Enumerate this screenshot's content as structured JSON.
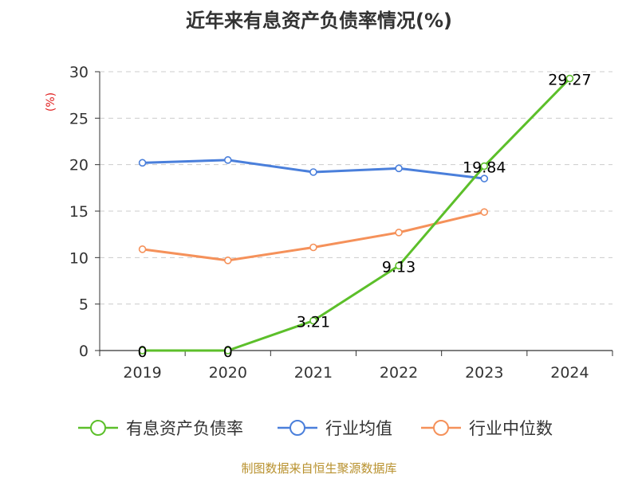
{
  "chart_data": {
    "type": "line",
    "title": "近年来有息资产负债率情况(%)",
    "ylabel": "(%)",
    "xlabel": "",
    "categories": [
      "2019",
      "2020",
      "2021",
      "2022",
      "2023",
      "2024"
    ],
    "ylim": [
      0,
      30
    ],
    "yticks": [
      0,
      5,
      10,
      15,
      20,
      25,
      30
    ],
    "grid": true,
    "legend_position": "bottom",
    "series": [
      {
        "name": "有息资产负债率",
        "color": "#5cbf2a",
        "values": [
          0,
          0,
          3.21,
          9.13,
          19.84,
          29.27
        ],
        "labels": [
          "0",
          "0",
          "3.21",
          "9.13",
          "19.84",
          "29.27"
        ]
      },
      {
        "name": "行业均值",
        "color": "#4a7fdb",
        "values": [
          20.2,
          20.5,
          19.2,
          19.6,
          18.5,
          null
        ]
      },
      {
        "name": "行业中位数",
        "color": "#f5915a",
        "values": [
          10.9,
          9.7,
          11.1,
          12.7,
          14.9,
          null
        ]
      }
    ]
  },
  "footer": {
    "source": "制图数据来自恒生聚源数据库"
  }
}
